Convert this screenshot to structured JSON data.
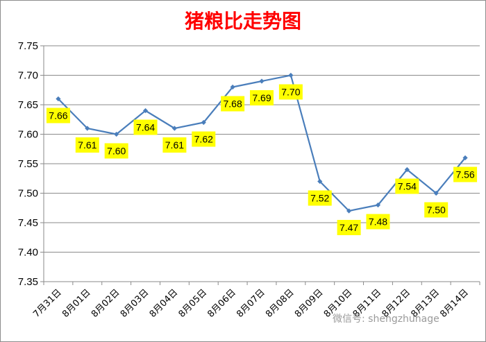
{
  "chart_data": {
    "type": "line",
    "title": "猪粮比走势图",
    "categories": [
      "7月31日",
      "8月01日",
      "8月02日",
      "8月03日",
      "8月04日",
      "8月05日",
      "8月06日",
      "8月07日",
      "8月08日",
      "8月09日",
      "8月10日",
      "8月11日",
      "8月12日",
      "8月13日",
      "8月14日"
    ],
    "values": [
      7.66,
      7.61,
      7.6,
      7.64,
      7.61,
      7.62,
      7.68,
      7.69,
      7.7,
      7.52,
      7.47,
      7.48,
      7.54,
      7.5,
      7.56
    ],
    "labels": [
      "7.66",
      "7.61",
      "7.60",
      "7.64",
      "7.61",
      "7.62",
      "7.68",
      "7.69",
      "7.70",
      "7.52",
      "7.47",
      "7.48",
      "7.54",
      "7.50",
      "7.56"
    ],
    "ylim": [
      7.35,
      7.75
    ],
    "yticks": [
      "7.35",
      "7.40",
      "7.45",
      "7.50",
      "7.55",
      "7.60",
      "7.65",
      "7.70",
      "7.75"
    ],
    "grid": true,
    "line_color": "#4a7ebb",
    "label_bg_color": "#ffff00",
    "title_color": "#ff0000"
  },
  "watermark": "微信号: shengzhuhage"
}
